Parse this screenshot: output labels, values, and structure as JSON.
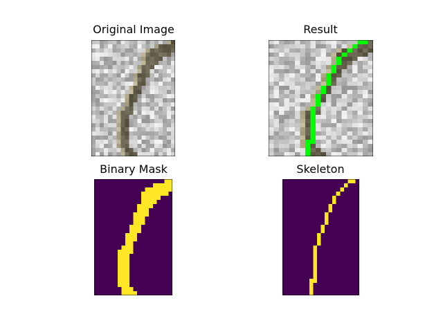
{
  "panels": {
    "original": {
      "title": "Original Image"
    },
    "result": {
      "title": "Result"
    },
    "binary": {
      "title": "Binary Mask"
    },
    "skeleton": {
      "title": "Skeleton"
    }
  },
  "colors": {
    "mask_background": "#440154",
    "mask_foreground": "#fde725",
    "skeleton_overlay": "#00ff00",
    "stone_dark": "#5f5644",
    "noise_light": "#e6e6e6",
    "noise_dark": "#9a9a9a"
  }
}
